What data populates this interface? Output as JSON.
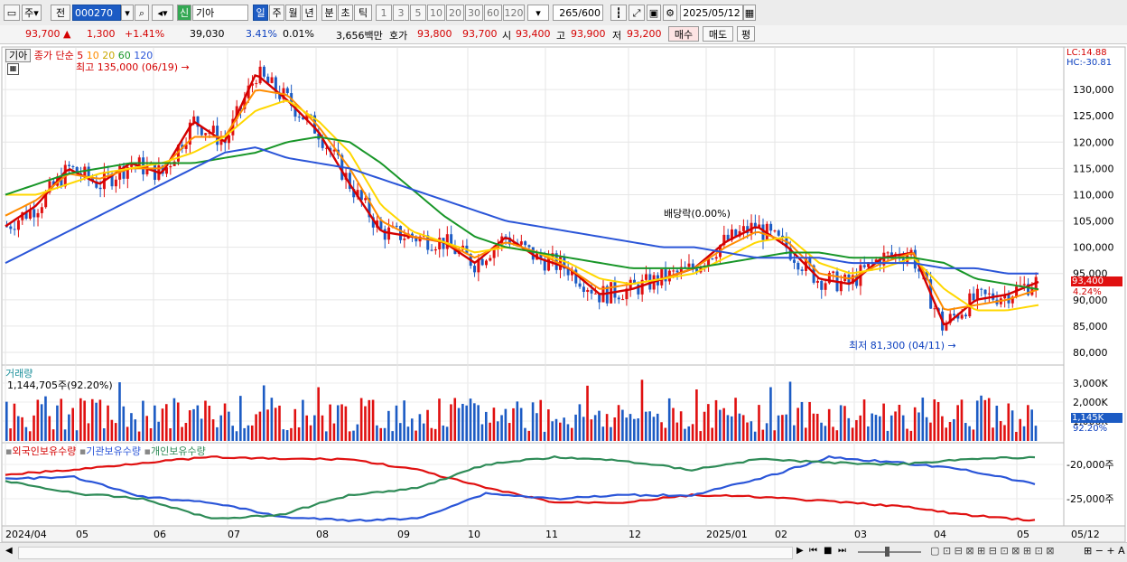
{
  "toolbar": {
    "period_buttons": [
      "1",
      "3",
      "5",
      "10",
      "20",
      "30",
      "60",
      "120"
    ],
    "type_tabs": [
      "일",
      "주",
      "월",
      "년",
      "분",
      "초",
      "틱"
    ],
    "left_labels": [
      "주",
      "전"
    ],
    "code_value": "000270",
    "stock_badge": "신",
    "stock_name": "기아",
    "count": "265",
    "count_max": "/600",
    "date": "2025/05/12"
  },
  "info": {
    "price": "93,700",
    "change": "1,300",
    "change_pct": "+1.41%",
    "volume": "39,030",
    "vol_ratio": "3.41%",
    "turnover": "0.01%",
    "amount": "3,656백만",
    "hoga_label": "호가",
    "ask": "93,800",
    "bid": "93,700",
    "open_label": "시",
    "open": "93,400",
    "high_label": "고",
    "high": "93,900",
    "low_label": "저",
    "low": "93,200",
    "buy": "매수",
    "sell": "매도",
    "avg": "평"
  },
  "price_panel": {
    "name_tab": "기아",
    "ma_title": "종가 단순",
    "ma_periods": [
      "5",
      "10",
      "20",
      "60",
      "120"
    ],
    "ma_colors": [
      "#d40000",
      "#ff8c00",
      "#ffd700",
      "#189628",
      "#2a55d8"
    ],
    "high_annotation": "최고 135,000 (06/19)",
    "low_annotation": "최저 81,300 (04/11)",
    "dividend_annotation": "배당락(0.00%)",
    "lc": "LC:14.88",
    "hc": "HC:-30.81",
    "current_price_tag": "93,400",
    "current_pct_tag": "4.24%",
    "y_ticks": [
      "130,000",
      "125,000",
      "120,000",
      "115,000",
      "110,000",
      "105,000",
      "100,000",
      "95,000",
      "90,000",
      "85,000",
      "80,000"
    ]
  },
  "volume_panel": {
    "title": "거래량",
    "value": "1,144,705주(92.20%)",
    "y_ticks": [
      "3,000K",
      "2,000K",
      "1,000K"
    ],
    "tag": "1,145K",
    "tag_pct": "92.20%"
  },
  "holdings_panel": {
    "legend": [
      "외국인보유수량",
      "기관보유수량",
      "개인보유수량"
    ],
    "y_ticks": [
      "-20,000주",
      "-25,000주"
    ]
  },
  "x_axis": {
    "labels": [
      "2024/04",
      "05",
      "06",
      "07",
      "08",
      "09",
      "10",
      "11",
      "12",
      "2025/01",
      "02",
      "03",
      "04",
      "05"
    ],
    "right_label": "05/12"
  },
  "chart_data": {
    "type": "candlestick",
    "series": [
      {
        "name": "5",
        "values": [
          104000,
          108000,
          115000,
          112000,
          116000,
          114000,
          124000,
          120000,
          133000,
          128000,
          122000,
          112000,
          103000,
          102000,
          101000,
          97000,
          102000,
          98000,
          96000,
          91000,
          92000,
          94000,
          96000,
          101000,
          104000,
          100000,
          94000,
          93000,
          98000,
          99000,
          85000,
          90000,
          91000,
          93400
        ]
      },
      {
        "name": "10",
        "values": [
          106000,
          109000,
          114000,
          113000,
          115000,
          115000,
          121000,
          121000,
          130000,
          129000,
          123000,
          115000,
          105000,
          102000,
          101000,
          98000,
          101000,
          99000,
          96000,
          92000,
          93000,
          94000,
          96000,
          100000,
          103000,
          101000,
          95000,
          94000,
          97000,
          99000,
          88000,
          89000,
          90000,
          92000
        ]
      },
      {
        "name": "20",
        "values": [
          110000,
          110000,
          112000,
          114000,
          115000,
          116000,
          118000,
          121000,
          126000,
          128000,
          124000,
          118000,
          108000,
          103000,
          101000,
          99000,
          100000,
          99000,
          97000,
          94000,
          93000,
          94000,
          95000,
          98000,
          101000,
          102000,
          97000,
          95000,
          96000,
          98000,
          92000,
          88000,
          88000,
          89000
        ]
      },
      {
        "name": "60",
        "values": [
          110000,
          112000,
          114000,
          115000,
          116000,
          116000,
          116000,
          117000,
          118000,
          120000,
          121000,
          120000,
          116000,
          111000,
          106000,
          102000,
          100000,
          99000,
          98000,
          97000,
          96000,
          96000,
          96000,
          97000,
          98000,
          99000,
          99000,
          98000,
          98000,
          98000,
          97000,
          94000,
          93000,
          92000
        ]
      },
      {
        "name": "120",
        "values": [
          97000,
          100000,
          103000,
          106000,
          109000,
          112000,
          115000,
          118000,
          119000,
          117000,
          116000,
          115000,
          113000,
          111000,
          109000,
          107000,
          105000,
          104000,
          103000,
          102000,
          101000,
          100000,
          100000,
          99000,
          98000,
          98000,
          98000,
          97000,
          97000,
          97000,
          96000,
          96000,
          95000,
          95000
        ]
      }
    ]
  }
}
